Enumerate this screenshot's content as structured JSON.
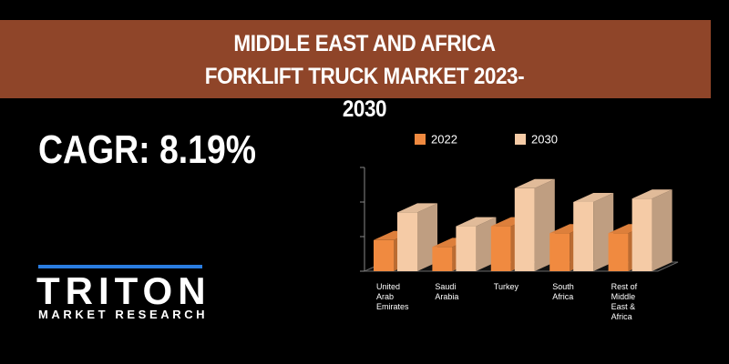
{
  "header": {
    "title": "MIDDLE EAST AND AFRICA FORKLIFT TRUCK MARKET 2023-2030"
  },
  "cagr": "CAGR: 8.19%",
  "logo": {
    "name": "TRITON",
    "tagline": "MARKET RESEARCH"
  },
  "chart_data": {
    "type": "bar3d",
    "categories": [
      "United Arab Emirates",
      "Saudi Arabia",
      "Turkey",
      "South Africa",
      "Rest of Middle East & Africa"
    ],
    "series": [
      {
        "name": "2022",
        "color": "#f08a40",
        "values": [
          0.9,
          0.7,
          1.3,
          1.1,
          1.1
        ]
      },
      {
        "name": "2030",
        "color": "#f5cba6",
        "values": [
          1.7,
          1.3,
          2.4,
          2.0,
          2.1
        ]
      }
    ],
    "ylim": [
      0,
      3
    ],
    "yticks": [
      0,
      1,
      2,
      3
    ]
  }
}
